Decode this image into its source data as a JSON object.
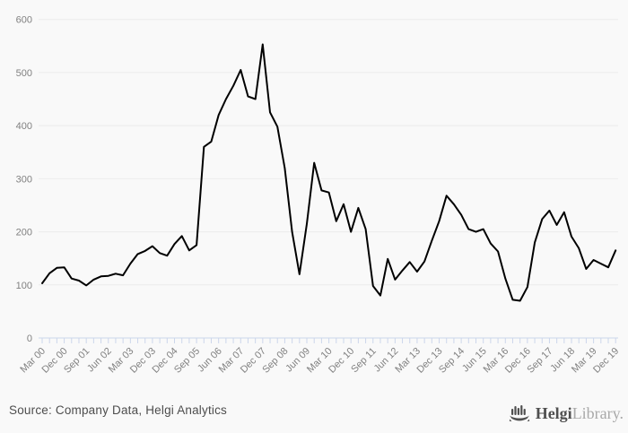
{
  "chart_data": {
    "type": "line",
    "title": "",
    "xlabel": "",
    "ylabel": "",
    "ylim": [
      0,
      600
    ],
    "yticks": [
      0,
      100,
      200,
      300,
      400,
      500,
      600
    ],
    "grid": true,
    "legend_position": "none",
    "x_tick_label_every": 3,
    "x_tick_labels": [
      "Mar 00",
      "Dec 00",
      "Sep 01",
      "Jun 02",
      "Mar 03",
      "Dec 03",
      "Dec 04",
      "Sep 05",
      "Jun 06",
      "Mar 07",
      "Dec 07",
      "Sep 08",
      "Jun 09",
      "Mar 10",
      "Dec 10",
      "Sep 11",
      "Jun 12",
      "Mar 13",
      "Dec 13",
      "Sep 14",
      "Jun 15",
      "Mar 16",
      "Dec 16",
      "Sep 17",
      "Jun 18",
      "Mar 19",
      "Dec 19"
    ],
    "values": [
      103,
      122,
      132,
      133,
      112,
      108,
      99,
      110,
      116,
      117,
      121,
      118,
      140,
      158,
      164,
      173,
      160,
      155,
      177,
      192,
      165,
      175,
      360,
      370,
      420,
      450,
      475,
      505,
      455,
      450,
      553,
      425,
      398,
      320,
      200,
      120,
      215,
      330,
      278,
      274,
      220,
      252,
      200,
      245,
      205,
      98,
      80,
      149,
      110,
      127,
      143,
      125,
      144,
      183,
      220,
      268,
      252,
      232,
      205,
      200,
      205,
      178,
      163,
      112,
      72,
      70,
      96,
      180,
      224,
      240,
      213,
      237,
      191,
      169,
      130,
      147,
      140,
      133,
      165
    ]
  },
  "colors": {
    "background": "#f9f9f9",
    "grid": "#ececec",
    "axis": "#ccd6eb",
    "tick_label": "#818181",
    "series_line": "#000000",
    "source_text": "#4d4d4d",
    "brand_dark": "#4f4f4f",
    "brand_light": "#a9a9a9"
  },
  "footer": {
    "source_text": "Source: Company Data, Helgi Analytics",
    "logo": {
      "brand_bold": "Helgi",
      "brand_light": "Library.",
      "icon": "ship-icon"
    }
  }
}
